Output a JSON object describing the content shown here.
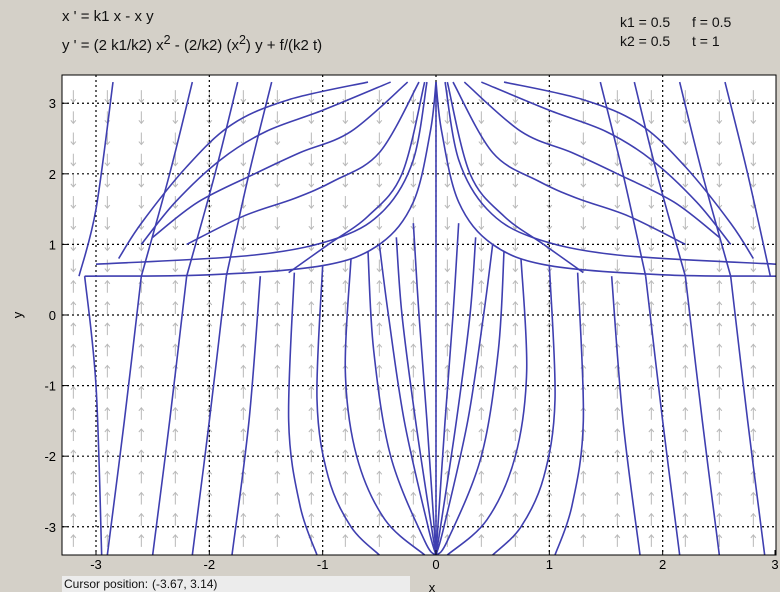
{
  "equations": {
    "line1": "x ' = k1 x - x y",
    "line2_pre": "y ' = (2 k1/k2) x",
    "line2_exp1": "2",
    "line2_mid": " - (2/k2) (x",
    "line2_exp2": "2",
    "line2_post": ") y + f/(k2 t)"
  },
  "params": {
    "k1": "k1 = 0.5",
    "f": "f = 0.5",
    "k2": "k2 = 0.5",
    "t": "t = 1"
  },
  "cursor": {
    "label": "Cursor position:",
    "value": "(-3.67, 3.14)"
  },
  "colors": {
    "curve": "#3f3fb0",
    "arrow": "#b8b8b8",
    "grid": "#000000",
    "background": "#d4d0c8"
  },
  "chart_data": {
    "type": "line",
    "title": "",
    "xlabel": "x",
    "ylabel": "y",
    "xlim": [
      -3.3,
      3.0
    ],
    "ylim": [
      -3.4,
      3.4
    ],
    "xticks": [
      -3,
      -2,
      -1,
      0,
      1,
      2,
      3
    ],
    "yticks": [
      -3,
      -2,
      -1,
      0,
      1,
      2,
      3
    ],
    "grid": "dotted",
    "series": [
      {
        "values": [
          [
            -3.1,
            0.55
          ],
          [
            -2.0,
            0.57
          ],
          [
            -1.0,
            0.7
          ],
          [
            -0.5,
            1.0
          ],
          [
            -0.2,
            1.6
          ],
          [
            -0.05,
            2.6
          ],
          [
            0,
            3.3
          ]
        ]
      },
      {
        "values": [
          [
            0,
            3.3
          ],
          [
            0.05,
            2.6
          ],
          [
            0.2,
            1.6
          ],
          [
            0.5,
            1.0
          ],
          [
            1.0,
            0.7
          ],
          [
            2.0,
            0.57
          ],
          [
            3.0,
            0.55
          ]
        ]
      },
      {
        "values": [
          [
            -0.08,
            3.3
          ],
          [
            -0.2,
            2.2
          ],
          [
            -0.45,
            1.5
          ],
          [
            -0.85,
            1.1
          ],
          [
            -1.6,
            0.85
          ],
          [
            -3.0,
            0.72
          ]
        ]
      },
      {
        "values": [
          [
            0.08,
            3.3
          ],
          [
            0.2,
            2.2
          ],
          [
            0.45,
            1.5
          ],
          [
            0.85,
            1.1
          ],
          [
            1.6,
            0.85
          ],
          [
            3.0,
            0.72
          ]
        ]
      },
      {
        "values": [
          [
            -0.1,
            3.3
          ],
          [
            -0.3,
            2.0
          ],
          [
            -0.6,
            1.4
          ],
          [
            -0.95,
            1.0
          ],
          [
            -1.3,
            0.6
          ]
        ]
      },
      {
        "values": [
          [
            0.1,
            3.3
          ],
          [
            0.3,
            2.0
          ],
          [
            0.6,
            1.4
          ],
          [
            0.95,
            1.0
          ],
          [
            1.3,
            0.6
          ]
        ]
      },
      {
        "values": [
          [
            -0.15,
            3.3
          ],
          [
            -0.5,
            2.3
          ],
          [
            -0.9,
            1.9
          ],
          [
            -1.25,
            1.65
          ],
          [
            -1.7,
            1.4
          ],
          [
            -2.2,
            1.0
          ]
        ]
      },
      {
        "values": [
          [
            0.15,
            3.3
          ],
          [
            0.5,
            2.3
          ],
          [
            0.9,
            1.9
          ],
          [
            1.25,
            1.65
          ],
          [
            1.7,
            1.4
          ],
          [
            2.2,
            1.0
          ]
        ]
      },
      {
        "values": [
          [
            -0.25,
            3.3
          ],
          [
            -0.75,
            2.6
          ],
          [
            -1.2,
            2.3
          ],
          [
            -1.6,
            2.0
          ],
          [
            -2.1,
            1.6
          ],
          [
            -2.5,
            1.1
          ]
        ]
      },
      {
        "values": [
          [
            0.25,
            3.3
          ],
          [
            0.75,
            2.6
          ],
          [
            1.2,
            2.3
          ],
          [
            1.6,
            2.0
          ],
          [
            2.1,
            1.6
          ],
          [
            2.5,
            1.1
          ]
        ]
      },
      {
        "values": [
          [
            -0.4,
            3.3
          ],
          [
            -1.0,
            2.9
          ],
          [
            -1.5,
            2.6
          ],
          [
            -1.9,
            2.2
          ],
          [
            -2.3,
            1.6
          ],
          [
            -2.6,
            1.0
          ]
        ]
      },
      {
        "values": [
          [
            0.4,
            3.3
          ],
          [
            1.0,
            2.9
          ],
          [
            1.5,
            2.6
          ],
          [
            1.9,
            2.2
          ],
          [
            2.3,
            1.6
          ],
          [
            2.6,
            1.0
          ]
        ]
      },
      {
        "values": [
          [
            -0.6,
            3.3
          ],
          [
            -1.3,
            3.05
          ],
          [
            -1.8,
            2.7
          ],
          [
            -2.2,
            2.1
          ],
          [
            -2.6,
            1.3
          ],
          [
            -2.8,
            0.8
          ]
        ]
      },
      {
        "values": [
          [
            0.6,
            3.3
          ],
          [
            1.3,
            3.05
          ],
          [
            1.8,
            2.7
          ],
          [
            2.2,
            2.1
          ],
          [
            2.6,
            1.3
          ],
          [
            2.8,
            0.8
          ]
        ]
      },
      {
        "values": [
          [
            -2.85,
            3.3
          ],
          [
            -3.0,
            1.5
          ],
          [
            -3.15,
            0.55
          ]
        ]
      },
      {
        "values": [
          [
            -2.15,
            3.3
          ],
          [
            -2.35,
            2.0
          ],
          [
            -2.6,
            0.55
          ]
        ]
      },
      {
        "values": [
          [
            -1.75,
            3.3
          ],
          [
            -1.95,
            2.0
          ],
          [
            -2.2,
            0.55
          ]
        ]
      },
      {
        "values": [
          [
            -1.45,
            3.3
          ],
          [
            -1.65,
            2.0
          ],
          [
            -1.85,
            0.55
          ]
        ]
      },
      {
        "values": [
          [
            1.45,
            3.3
          ],
          [
            1.65,
            2.0
          ],
          [
            1.85,
            0.55
          ]
        ]
      },
      {
        "values": [
          [
            1.75,
            3.3
          ],
          [
            1.95,
            2.0
          ],
          [
            2.2,
            0.55
          ]
        ]
      },
      {
        "values": [
          [
            2.15,
            3.3
          ],
          [
            2.35,
            2.0
          ],
          [
            2.6,
            0.55
          ]
        ]
      },
      {
        "values": [
          [
            2.55,
            3.3
          ],
          [
            2.75,
            2.0
          ],
          [
            2.95,
            0.55
          ]
        ]
      },
      {
        "values": [
          [
            -3.1,
            0.55
          ],
          [
            -3.0,
            -1.0
          ],
          [
            -2.95,
            -3.4
          ]
        ]
      },
      {
        "values": [
          [
            -2.6,
            0.55
          ],
          [
            -2.75,
            -1.5
          ],
          [
            -2.9,
            -3.4
          ]
        ]
      },
      {
        "values": [
          [
            -2.2,
            0.55
          ],
          [
            -2.35,
            -1.5
          ],
          [
            -2.5,
            -3.4
          ]
        ]
      },
      {
        "values": [
          [
            -1.85,
            0.55
          ],
          [
            -2.0,
            -1.5
          ],
          [
            -2.15,
            -3.4
          ]
        ]
      },
      {
        "values": [
          [
            -1.55,
            0.55
          ],
          [
            -1.65,
            -1.5
          ],
          [
            -1.8,
            -3.4
          ]
        ]
      },
      {
        "values": [
          [
            2.6,
            0.55
          ],
          [
            2.75,
            -1.5
          ],
          [
            2.9,
            -3.4
          ]
        ]
      },
      {
        "values": [
          [
            2.2,
            0.55
          ],
          [
            2.35,
            -1.5
          ],
          [
            2.5,
            -3.4
          ]
        ]
      },
      {
        "values": [
          [
            1.85,
            0.55
          ],
          [
            2.0,
            -1.5
          ],
          [
            2.15,
            -3.4
          ]
        ]
      },
      {
        "values": [
          [
            1.55,
            0.55
          ],
          [
            1.65,
            -1.5
          ],
          [
            1.8,
            -3.4
          ]
        ]
      },
      {
        "values": [
          [
            -0.6,
            0.9
          ],
          [
            -0.55,
            -0.5
          ],
          [
            -0.4,
            -2.0
          ],
          [
            -0.1,
            -3.2
          ],
          [
            0,
            -3.4
          ]
        ]
      },
      {
        "values": [
          [
            0.6,
            0.9
          ],
          [
            0.55,
            -0.5
          ],
          [
            0.4,
            -2.0
          ],
          [
            0.1,
            -3.2
          ],
          [
            0,
            -3.4
          ]
        ]
      },
      {
        "values": [
          [
            -0.5,
            1.0
          ],
          [
            -0.42,
            0.0
          ],
          [
            -0.28,
            -1.5
          ],
          [
            -0.07,
            -3.0
          ],
          [
            0,
            -3.4
          ]
        ]
      },
      {
        "values": [
          [
            0.5,
            1.0
          ],
          [
            0.42,
            0.0
          ],
          [
            0.28,
            -1.5
          ],
          [
            0.07,
            -3.0
          ],
          [
            0,
            -3.4
          ]
        ]
      },
      {
        "values": [
          [
            -0.35,
            1.1
          ],
          [
            -0.3,
            0.0
          ],
          [
            -0.18,
            -1.5
          ],
          [
            -0.04,
            -3.0
          ],
          [
            0,
            -3.4
          ]
        ]
      },
      {
        "values": [
          [
            0.35,
            1.1
          ],
          [
            0.3,
            0.0
          ],
          [
            0.18,
            -1.5
          ],
          [
            0.04,
            -3.0
          ],
          [
            0,
            -3.4
          ]
        ]
      },
      {
        "values": [
          [
            -0.2,
            1.3
          ],
          [
            -0.15,
            0.0
          ],
          [
            -0.08,
            -1.5
          ],
          [
            0,
            -3.4
          ]
        ]
      },
      {
        "values": [
          [
            0.2,
            1.3
          ],
          [
            0.15,
            0.0
          ],
          [
            0.08,
            -1.5
          ],
          [
            0,
            -3.4
          ]
        ]
      },
      {
        "values": [
          [
            -0.75,
            0.8
          ],
          [
            -0.8,
            -0.8
          ],
          [
            -0.7,
            -2.0
          ],
          [
            -0.45,
            -2.9
          ],
          [
            -0.1,
            -3.4
          ]
        ]
      },
      {
        "values": [
          [
            0.75,
            0.8
          ],
          [
            0.8,
            -0.8
          ],
          [
            0.7,
            -2.0
          ],
          [
            0.45,
            -2.9
          ],
          [
            0.1,
            -3.4
          ]
        ]
      },
      {
        "values": [
          [
            -1.0,
            0.7
          ],
          [
            -1.05,
            -1.2
          ],
          [
            -0.95,
            -2.3
          ],
          [
            -0.75,
            -3.0
          ],
          [
            -0.5,
            -3.4
          ]
        ]
      },
      {
        "values": [
          [
            1.0,
            0.7
          ],
          [
            1.05,
            -1.2
          ],
          [
            0.95,
            -2.3
          ],
          [
            0.75,
            -3.0
          ],
          [
            0.5,
            -3.4
          ]
        ]
      },
      {
        "values": [
          [
            -1.25,
            0.6
          ],
          [
            -1.3,
            -1.5
          ],
          [
            -1.2,
            -2.7
          ],
          [
            -1.05,
            -3.4
          ]
        ]
      },
      {
        "values": [
          [
            1.25,
            0.6
          ],
          [
            1.3,
            -1.5
          ],
          [
            1.2,
            -2.7
          ],
          [
            1.05,
            -3.4
          ]
        ]
      },
      {
        "values": [
          [
            0,
            3.3
          ],
          [
            0,
            -3.4
          ]
        ]
      }
    ]
  }
}
